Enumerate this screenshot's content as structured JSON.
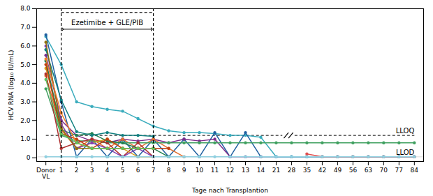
{
  "chart_data": {
    "type": "line",
    "xlabel": "Tage nach Transplantion",
    "ylabel": "HCV RNA (log₁₀ IU/mL)",
    "categories": [
      "Donor\nVL",
      "1",
      "2",
      "3",
      "4",
      "5",
      "6",
      "7",
      "8",
      "9",
      "10",
      "11",
      "12",
      "13",
      "14",
      "21",
      "28",
      "35",
      "42",
      "49",
      "56",
      "63",
      "70",
      "77",
      "84"
    ],
    "ylim": [
      -0.2,
      8.0
    ],
    "yticks": [
      0,
      {
        "value": 1.0,
        "label": "1.0"
      },
      {
        "value": 2.0,
        "label": "2.0"
      },
      {
        "value": 3.0,
        "label": "3.0"
      },
      {
        "value": 4.0,
        "label": "4.0"
      },
      {
        "value": 5.0,
        "label": "5.0"
      },
      {
        "value": 6.0,
        "label": "6.0"
      },
      {
        "value": 7.0,
        "label": "7.0"
      },
      {
        "value": 8.0,
        "label": "8.0"
      }
    ],
    "series": [
      {
        "color": "#3aacbd",
        "marker": "circle",
        "values": [
          6.5,
          5.0,
          3.0,
          2.75,
          2.6,
          2.5,
          2.1,
          1.7,
          1.45,
          1.35,
          1.35,
          1.3,
          1.2,
          1.2,
          1.1,
          0.05,
          0.05,
          0.05,
          0.05,
          0.05,
          0.05,
          0.05,
          0.05,
          0.05,
          0.05
        ]
      },
      {
        "color": "#2060a0",
        "marker": "circle",
        "values": [
          6.6,
          3.0,
          0.05,
          1.0,
          0.05,
          1.0,
          0.05,
          1.0,
          0.05,
          1.0,
          0.05,
          1.35,
          0.05,
          1.35,
          0.05,
          0.05,
          0.05,
          0.05,
          0.05,
          0.05,
          0.05,
          0.05,
          0.05,
          0.05,
          0.05
        ]
      },
      {
        "color": "#7b2d8b",
        "marker": "circle",
        "values": [
          5.5,
          2.0,
          1.2,
          0.9,
          0.8,
          1.0,
          0.9,
          1.0,
          0.8,
          1.0,
          0.9,
          1.0,
          0.05,
          0.05,
          0.05,
          null,
          null,
          null,
          null,
          null,
          null,
          null,
          null,
          null,
          null
        ]
      },
      {
        "color": "#e07030",
        "marker": "circle",
        "values": [
          4.4,
          1.5,
          0.5,
          1.0,
          0.5,
          1.0,
          0.5,
          1.0,
          0.5,
          0.05,
          null,
          null,
          null,
          null,
          null,
          null,
          null,
          null,
          null,
          null,
          null,
          null,
          null,
          null,
          null
        ]
      },
      {
        "color": "#40a060",
        "marker": "circle",
        "values": [
          3.7,
          1.2,
          0.9,
          0.9,
          0.8,
          0.8,
          0.8,
          0.8,
          0.8,
          0.8,
          0.8,
          0.8,
          0.8,
          0.8,
          0.8,
          0.8,
          0.8,
          0.8,
          0.8,
          0.8,
          0.8,
          0.8,
          0.8,
          0.8,
          0.8
        ]
      },
      {
        "color": "#b03030",
        "marker": "circle",
        "values": [
          4.5,
          0.5,
          0.8,
          1.0,
          0.8,
          0.05,
          0.8,
          0.05,
          null,
          null,
          null,
          null,
          null,
          null,
          null,
          null,
          null,
          null,
          null,
          null,
          null,
          null,
          null,
          null,
          null
        ]
      },
      {
        "color": "#d4a020",
        "marker": "circle",
        "values": [
          4.8,
          1.8,
          0.5,
          0.8,
          1.0,
          0.5,
          0.05,
          0.05,
          null,
          null,
          null,
          null,
          null,
          null,
          null,
          null,
          null,
          null,
          null,
          null,
          null,
          null,
          null,
          null,
          null
        ]
      },
      {
        "color": "#208050",
        "marker": "circle",
        "values": [
          5.2,
          1.5,
          1.2,
          1.3,
          0.9,
          0.8,
          0.5,
          0.5,
          0.05,
          null,
          null,
          null,
          null,
          null,
          null,
          null,
          null,
          null,
          null,
          null,
          null,
          null,
          null,
          null,
          null
        ]
      },
      {
        "color": "#8040b0",
        "marker": "circle",
        "values": [
          6.0,
          1.8,
          0.5,
          0.8,
          0.5,
          0.05,
          0.5,
          0.05,
          null,
          null,
          null,
          null,
          null,
          null,
          null,
          null,
          null,
          null,
          null,
          null,
          null,
          null,
          null,
          null,
          null
        ]
      },
      {
        "color": "#108080",
        "marker": "circle",
        "values": [
          5.8,
          3.1,
          1.4,
          1.2,
          1.35,
          1.2,
          1.2,
          1.15,
          null,
          null,
          null,
          null,
          null,
          null,
          null,
          null,
          null,
          null,
          null,
          null,
          null,
          null,
          null,
          null,
          null
        ]
      },
      {
        "color": "#c04010",
        "marker": "circle",
        "values": [
          5.0,
          1.3,
          1.0,
          0.5,
          1.0,
          0.5,
          0.5,
          0.5,
          0.5,
          null,
          null,
          null,
          null,
          null,
          null,
          null,
          null,
          null,
          null,
          null,
          null,
          null,
          null,
          null,
          null
        ]
      },
      {
        "color": "#907010",
        "marker": "circle",
        "values": [
          6.2,
          1.6,
          0.5,
          0.5,
          0.5,
          0.5,
          0.5,
          0.5,
          null,
          null,
          null,
          null,
          null,
          null,
          null,
          null,
          null,
          null,
          null,
          null,
          null,
          null,
          null,
          null,
          null
        ]
      },
      {
        "color": "#e05050",
        "marker": "circle",
        "values": [
          null,
          null,
          null,
          null,
          null,
          null,
          null,
          null,
          null,
          null,
          null,
          null,
          null,
          null,
          null,
          null,
          null,
          0.2,
          0.05,
          0.05,
          0.05,
          0.05,
          0.05,
          0.05,
          0.05
        ]
      },
      {
        "color": "#90d0e0",
        "marker": "circle",
        "values": [
          0.05,
          0.05,
          0.05,
          0.05,
          0.05,
          0.05,
          0.05,
          0.05,
          0.05,
          0.05,
          0.05,
          0.05,
          0.05,
          0.05,
          0.05,
          0.05,
          0.05,
          0.05,
          0.05,
          0.05,
          0.05,
          0.05,
          0.05,
          0.05,
          0.05
        ]
      },
      {
        "color": "#f08030",
        "marker": "circle",
        "values": [
          5.3,
          2.4,
          0.8,
          0.5,
          0.5,
          0.5,
          0.5,
          0.5,
          null,
          null,
          null,
          null,
          null,
          null,
          null,
          null,
          null,
          null,
          null,
          null,
          null,
          null,
          null,
          null,
          null
        ]
      },
      {
        "color": "#60c060",
        "marker": "circle",
        "values": [
          4.2,
          1.3,
          0.8,
          0.5,
          0.5,
          0.5,
          0.5,
          0.5,
          null,
          null,
          null,
          null,
          null,
          null,
          null,
          null,
          null,
          null,
          null,
          null,
          null,
          null,
          null,
          null,
          null
        ]
      }
    ],
    "annotations": [
      {
        "text": "LLOQ",
        "y": 1.2,
        "line_style": "dashed",
        "break_at": 15.8
      },
      {
        "text": "LLOD",
        "y": 0.05,
        "line_style": "solid"
      },
      {
        "text": "Ezetimibe + GLE/PIB",
        "from": "1",
        "to": "7",
        "top": 7.8,
        "arrow_y": 6.9,
        "line_style": "dashed"
      }
    ]
  }
}
